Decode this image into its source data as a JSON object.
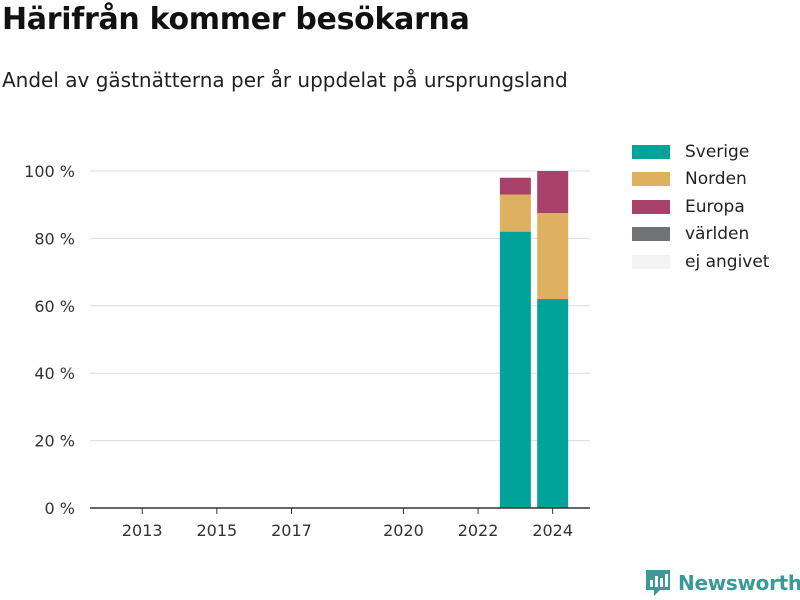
{
  "header": {
    "title": "Härifrån kommer besökarna",
    "subtitle": "Andel av gästnätterna per år uppdelat på ursprungsland"
  },
  "brand": {
    "name": "Newsworthy",
    "color": "#3a9a98",
    "icon": "bar-chart-logo-icon"
  },
  "chart_data": {
    "type": "bar",
    "stacked": true,
    "title": "Härifrån kommer besökarna",
    "subtitle": "Andel av gästnätterna per år uppdelat på ursprungsland",
    "xlabel": "",
    "ylabel": "",
    "x": [
      2023,
      2024
    ],
    "xlim": [
      2011.6,
      2025.0
    ],
    "xticks": [
      2013,
      2015,
      2017,
      2020,
      2022,
      2024
    ],
    "ylim": [
      0,
      100
    ],
    "yticks": [
      0,
      20,
      40,
      60,
      80,
      100
    ],
    "ytick_labels": [
      "0 %",
      "20 %",
      "40 %",
      "60 %",
      "80 %",
      "100 %"
    ],
    "grid": true,
    "legend_position": "right",
    "series": [
      {
        "name": "Sverige",
        "color": "#00a39a",
        "values": [
          82,
          62
        ]
      },
      {
        "name": "Norden",
        "color": "#deb160",
        "values": [
          11,
          25.5
        ]
      },
      {
        "name": "Europa",
        "color": "#a8426a",
        "values": [
          5,
          12.5
        ]
      },
      {
        "name": "världen",
        "color": "#707276",
        "values": [
          0,
          0
        ]
      },
      {
        "name": "ej angivet",
        "color": "#f3f3f3",
        "values": [
          0,
          0
        ]
      }
    ]
  }
}
